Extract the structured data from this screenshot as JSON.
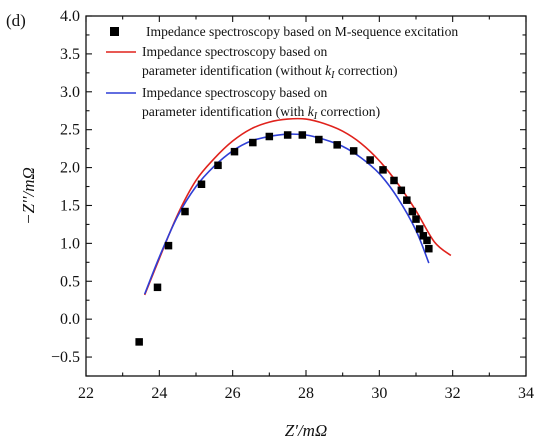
{
  "panel_label": "(d)",
  "chart_data": {
    "type": "scatter",
    "xlabel": "Z′/mΩ",
    "ylabel": "−Z′′/mΩ",
    "xlim": [
      22,
      34
    ],
    "ylim": [
      -0.75,
      4.0
    ],
    "xticks": [
      "22",
      "24",
      "26",
      "28",
      "30",
      "32",
      "34"
    ],
    "yticks": [
      "−0.5",
      "0.0",
      "0.5",
      "1.0",
      "1.5",
      "2.0",
      "2.5",
      "3.0",
      "3.5",
      "4.0"
    ],
    "legend_position": "top",
    "series": [
      {
        "name": "Impedance spectroscopy based on M-sequence excitation",
        "kind": "markers",
        "marker": "square",
        "color": "#000000",
        "x": [
          23.45,
          23.95,
          24.25,
          24.7,
          25.15,
          25.6,
          26.05,
          26.55,
          27.0,
          27.5,
          27.9,
          28.35,
          28.85,
          29.3,
          29.75,
          30.1,
          30.4,
          30.6,
          30.75,
          30.9,
          31.0,
          31.1,
          31.2,
          31.3,
          31.35
        ],
        "y": [
          -0.3,
          0.42,
          0.97,
          1.42,
          1.78,
          2.03,
          2.21,
          2.33,
          2.41,
          2.43,
          2.43,
          2.37,
          2.3,
          2.22,
          2.1,
          1.97,
          1.83,
          1.7,
          1.57,
          1.42,
          1.32,
          1.19,
          1.1,
          1.04,
          0.93
        ]
      },
      {
        "name": "Impedance spectroscopy based on parameter identification (without k_I correction)",
        "kind": "line",
        "color": "#e0221c",
        "x": [
          23.6,
          24.0,
          24.5,
          25.0,
          25.5,
          26.0,
          26.5,
          27.0,
          27.5,
          28.0,
          28.5,
          29.0,
          29.5,
          30.0,
          30.5,
          31.0,
          31.5,
          31.95
        ],
        "y": [
          0.32,
          0.8,
          1.38,
          1.83,
          2.12,
          2.35,
          2.51,
          2.6,
          2.64,
          2.64,
          2.58,
          2.48,
          2.32,
          2.09,
          1.79,
          1.43,
          1.02,
          0.84
        ]
      },
      {
        "name": "Impedance spectroscopy based on parameter identification (with k_I correction)",
        "kind": "line",
        "color": "#2f3fd6",
        "x": [
          23.6,
          24.0,
          24.5,
          25.0,
          25.5,
          26.0,
          26.5,
          27.0,
          27.5,
          28.0,
          28.5,
          29.0,
          29.5,
          30.0,
          30.5,
          31.0,
          31.35
        ],
        "y": [
          0.33,
          0.82,
          1.36,
          1.75,
          2.02,
          2.22,
          2.35,
          2.41,
          2.44,
          2.43,
          2.37,
          2.28,
          2.13,
          1.92,
          1.6,
          1.17,
          0.74
        ]
      }
    ],
    "legend": [
      {
        "lines": [
          "Impedance spectroscopy based on M-sequence excitation"
        ]
      },
      {
        "lines": [
          "Impedance spectroscopy based on",
          "parameter identification (without ",
          "k",
          "I",
          " correction)"
        ]
      },
      {
        "lines": [
          "Impedance spectroscopy based on",
          "parameter identification (with ",
          "k",
          "I",
          " correction)"
        ]
      }
    ]
  }
}
